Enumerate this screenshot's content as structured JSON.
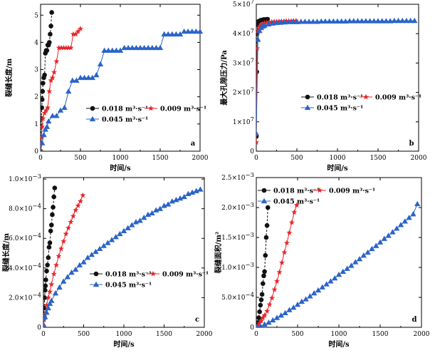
{
  "legend": {
    "s018": "0.018 m³·s⁻¹",
    "s009": "0.009 m³·s⁻¹",
    "s045": "0.045 m³·s⁻¹"
  },
  "colors": {
    "s018": "#111111",
    "s009": "#e8262a",
    "s045": "#2b64c8"
  },
  "chart_data": [
    {
      "panel": "a",
      "type": "line",
      "xlabel": "时间/s",
      "ylabel": "裂缝长度/m",
      "xlim": [
        0,
        2000
      ],
      "ylim": [
        0,
        5.4
      ],
      "xticks": [
        "0",
        "500",
        "1000",
        "1500",
        "2000"
      ],
      "yticks": [
        "0",
        "1",
        "2",
        "3",
        "4",
        "5"
      ],
      "series": [
        {
          "name": "0.018 m³·s⁻¹",
          "key": "s018",
          "marker": "circle",
          "x": [
            0,
            5,
            10,
            15,
            20,
            25,
            30,
            40,
            50,
            60,
            70,
            80,
            90,
            100,
            110,
            120,
            130,
            140
          ],
          "y": [
            0,
            0.3,
            1.2,
            1.6,
            1.9,
            2.2,
            2.5,
            2.7,
            2.8,
            3.6,
            3.7,
            3.7,
            3.9,
            3.9,
            4.0,
            4.3,
            4.6,
            5.1
          ]
        },
        {
          "name": "0.009 m³·s⁻¹",
          "key": "s009",
          "marker": "star",
          "x": [
            0,
            10,
            20,
            30,
            50,
            70,
            90,
            110,
            130,
            150,
            170,
            200,
            230,
            260,
            290,
            320,
            350,
            380,
            410,
            440,
            470,
            500
          ],
          "y": [
            0,
            0.5,
            0.9,
            1.2,
            1.4,
            1.5,
            1.6,
            2.2,
            2.6,
            2.7,
            2.9,
            3.3,
            3.8,
            3.8,
            3.8,
            3.8,
            3.8,
            3.8,
            4.3,
            4.3,
            4.4,
            4.5
          ]
        },
        {
          "name": "0.045 m³·s⁻¹",
          "key": "s045",
          "marker": "triangle",
          "x": [
            0,
            20,
            40,
            60,
            80,
            100,
            150,
            200,
            250,
            300,
            350,
            400,
            450,
            500,
            550,
            600,
            650,
            700,
            750,
            800,
            850,
            900,
            950,
            1000,
            1050,
            1100,
            1150,
            1200,
            1250,
            1300,
            1350,
            1400,
            1450,
            1500,
            1550,
            1600,
            1650,
            1700,
            1750,
            1800,
            1850,
            1900,
            1950,
            2000
          ],
          "y": [
            0,
            0.3,
            0.6,
            0.8,
            0.9,
            1.1,
            1.3,
            1.3,
            1.5,
            1.6,
            2.2,
            2.6,
            2.6,
            2.7,
            2.7,
            2.7,
            2.7,
            2.8,
            3.2,
            3.7,
            3.7,
            3.7,
            3.7,
            3.7,
            3.8,
            3.8,
            3.8,
            3.8,
            3.8,
            3.8,
            3.8,
            3.8,
            3.8,
            3.8,
            4.3,
            4.3,
            4.3,
            4.3,
            4.3,
            4.4,
            4.4,
            4.4,
            4.4,
            4.4
          ]
        }
      ]
    },
    {
      "panel": "b",
      "type": "line",
      "xlabel": "时间/s",
      "ylabel": "最大孔隙压力/Pa",
      "xlim": [
        0,
        2000
      ],
      "ylim": [
        0,
        50000000
      ],
      "xticks": [
        "0",
        "500",
        "1000",
        "1500",
        "2000"
      ],
      "yticks": [
        {
          "mant": "0",
          "exp": ""
        },
        {
          "mant": "1×10",
          "exp": "7"
        },
        {
          "mant": "2×10",
          "exp": "7"
        },
        {
          "mant": "3×10",
          "exp": "7"
        },
        {
          "mant": "4×10",
          "exp": "7"
        },
        {
          "mant": "5×10",
          "exp": "7"
        }
      ],
      "series": [
        {
          "name": "0.018 m³·s⁻¹",
          "key": "s018",
          "marker": "circle",
          "x": [
            0,
            5,
            10,
            15,
            20,
            30,
            40,
            50,
            60,
            70,
            80,
            90,
            100,
            110,
            120,
            130,
            140
          ],
          "y": [
            5000000,
            27000000,
            40000000,
            43000000,
            44000000,
            44200000,
            44300000,
            44500000,
            44600000,
            44600000,
            44700000,
            44800000,
            44800000,
            44700000,
            44800000,
            44900000,
            44900000
          ]
        },
        {
          "name": "0.009 m³·s⁻¹",
          "key": "s009",
          "marker": "star",
          "x": [
            0,
            10,
            20,
            40,
            60,
            80,
            100,
            130,
            160,
            190,
            220,
            250,
            280,
            310,
            340,
            370,
            400,
            430,
            460,
            490
          ],
          "y": [
            3000000,
            35000000,
            41000000,
            42500000,
            43000000,
            43300000,
            43600000,
            43800000,
            43900000,
            44000000,
            44100000,
            44100000,
            44200000,
            44200000,
            44200000,
            44300000,
            44300000,
            44300000,
            44300000,
            44400000
          ]
        },
        {
          "name": "0.045 m³·s⁻¹",
          "key": "s045",
          "marker": "triangle",
          "x": [
            0,
            20,
            40,
            60,
            80,
            100,
            150,
            200,
            250,
            300,
            350,
            400,
            450,
            500,
            550,
            600,
            650,
            700,
            750,
            800,
            850,
            900,
            950,
            1000,
            1050,
            1100,
            1150,
            1200,
            1250,
            1300,
            1350,
            1400,
            1450,
            1500,
            1550,
            1600,
            1650,
            1700,
            1750,
            1800,
            1850,
            1900,
            1950
          ],
          "y": [
            6000000,
            38000000,
            41000000,
            42000000,
            42500000,
            42800000,
            43200000,
            43500000,
            43700000,
            43800000,
            43900000,
            44000000,
            44000000,
            44000000,
            44100000,
            44100000,
            44100000,
            44100000,
            44100000,
            44200000,
            44200000,
            44200000,
            44200000,
            44200000,
            44200000,
            44200000,
            44300000,
            44300000,
            44300000,
            44300000,
            44300000,
            44300000,
            44300000,
            44300000,
            44300000,
            44300000,
            44300000,
            44400000,
            44400000,
            44400000,
            44400000,
            44400000,
            44400000
          ]
        }
      ]
    },
    {
      "panel": "c",
      "type": "line",
      "xlabel": "时间/s",
      "ylabel": "裂缝长度/m",
      "xlim": [
        0,
        2000
      ],
      "ylim": [
        0,
        0.00101
      ],
      "xticks": [
        "0",
        "500",
        "1000",
        "1500",
        "2000"
      ],
      "yticks": [
        {
          "mant": "0",
          "exp": ""
        },
        {
          "mant": "2.0×10",
          "exp": "−4"
        },
        {
          "mant": "4.0×10",
          "exp": "−4"
        },
        {
          "mant": "6.0×10",
          "exp": "−4"
        },
        {
          "mant": "8.0×10",
          "exp": "−4"
        },
        {
          "mant": "1.0×10",
          "exp": "−3"
        }
      ],
      "series": [
        {
          "name": "0.018 m³·s⁻¹",
          "key": "s018",
          "marker": "circle",
          "x": [
            0,
            5,
            10,
            15,
            20,
            25,
            30,
            40,
            50,
            60,
            70,
            80,
            90,
            100,
            110,
            120,
            130,
            140
          ],
          "y": [
            0,
            6e-05,
            0.00013,
            0.0002,
            0.00025,
            0.00028,
            0.00032,
            0.00038,
            0.00042,
            0.00047,
            0.00054,
            0.00057,
            0.00065,
            0.00069,
            0.00076,
            0.00081,
            0.00088,
            0.00094
          ]
        },
        {
          "name": "0.009 m³·s⁻¹",
          "key": "s009",
          "marker": "star",
          "x": [
            0,
            10,
            20,
            40,
            60,
            80,
            100,
            130,
            160,
            190,
            220,
            250,
            280,
            310,
            340,
            370,
            400,
            430,
            460,
            490
          ],
          "y": [
            0,
            5e-05,
            9e-05,
            0.00015,
            0.0002,
            0.00024,
            0.00029,
            0.00036,
            0.00042,
            0.00048,
            0.00053,
            0.00058,
            0.00063,
            0.00067,
            0.00071,
            0.00075,
            0.00079,
            0.00082,
            0.00085,
            0.00089
          ]
        },
        {
          "name": "0.045 m³·s⁻¹",
          "key": "s045",
          "marker": "triangle",
          "x": [
            0,
            20,
            40,
            60,
            80,
            100,
            150,
            200,
            250,
            300,
            350,
            400,
            450,
            500,
            550,
            600,
            650,
            700,
            750,
            800,
            850,
            900,
            950,
            1000,
            1050,
            1100,
            1150,
            1200,
            1250,
            1300,
            1350,
            1400,
            1450,
            1500,
            1550,
            1600,
            1650,
            1700,
            1750,
            1800,
            1850,
            1900,
            1950
          ],
          "y": [
            2e-05,
            7e-05,
            0.0001,
            0.00013,
            0.00016,
            0.00018,
            0.00023,
            0.00027,
            0.00031,
            0.00034,
            0.00037,
            0.00039,
            0.00042,
            0.00044,
            0.00047,
            0.00049,
            0.00051,
            0.00053,
            0.00055,
            0.00057,
            0.00059,
            0.00061,
            0.00063,
            0.00065,
            0.00067,
            0.00069,
            0.00071,
            0.00072,
            0.00074,
            0.00076,
            0.00077,
            0.00079,
            0.0008,
            0.00082,
            0.00083,
            0.00085,
            0.00086,
            0.00087,
            0.00088,
            0.0009,
            0.00091,
            0.00092,
            0.00093
          ]
        }
      ]
    },
    {
      "panel": "d",
      "type": "line",
      "xlabel": "时间/s",
      "ylabel": "裂缝面积/m²",
      "xlim": [
        0,
        2000
      ],
      "ylim": [
        0,
        0.0025
      ],
      "xticks": [
        "0",
        "500",
        "1000",
        "1500",
        "2000"
      ],
      "yticks": [
        {
          "mant": "0",
          "exp": ""
        },
        {
          "mant": "5.0×10",
          "exp": "−4"
        },
        {
          "mant": "1.0×10",
          "exp": "−3"
        },
        {
          "mant": "1.5×10",
          "exp": "−3"
        },
        {
          "mant": "2.0×10",
          "exp": "−3"
        },
        {
          "mant": "2.5×10",
          "exp": "−3"
        }
      ],
      "series": [
        {
          "name": "0.018 m³·s⁻¹",
          "key": "s018",
          "marker": "circle",
          "x": [
            0,
            10,
            20,
            30,
            40,
            50,
            60,
            70,
            80,
            90,
            100,
            110,
            120,
            130,
            140
          ],
          "y": [
            0,
            3e-05,
            8e-05,
            0.00016,
            0.00026,
            0.00037,
            0.00046,
            0.00055,
            0.00073,
            0.00086,
            0.00093,
            0.0012,
            0.0015,
            0.0017,
            0.002
          ]
        },
        {
          "name": "0.009 m³·s⁻¹",
          "key": "s009",
          "marker": "star",
          "x": [
            0,
            20,
            40,
            60,
            80,
            100,
            130,
            160,
            190,
            220,
            250,
            280,
            310,
            340,
            370,
            400,
            430,
            460,
            490
          ],
          "y": [
            0,
            3e-05,
            7e-05,
            0.00011,
            0.00016,
            0.0002,
            0.00027,
            0.00038,
            0.00049,
            0.00063,
            0.00077,
            0.00092,
            0.00108,
            0.00125,
            0.00141,
            0.00158,
            0.00175,
            0.00192,
            0.00204
          ]
        },
        {
          "name": "0.045 m³·s⁻¹",
          "key": "s045",
          "marker": "triangle",
          "x": [
            0,
            50,
            100,
            150,
            200,
            250,
            300,
            350,
            400,
            450,
            500,
            550,
            600,
            650,
            700,
            750,
            800,
            850,
            900,
            950,
            1000,
            1050,
            1100,
            1150,
            1200,
            1250,
            1300,
            1350,
            1400,
            1450,
            1500,
            1550,
            1600,
            1650,
            1700,
            1750,
            1800,
            1850,
            1900,
            1950
          ],
          "y": [
            0,
            2e-05,
            5e-05,
            8e-05,
            0.00012,
            0.00016,
            0.0002,
            0.00024,
            0.00029,
            0.00033,
            0.00038,
            0.00043,
            0.00047,
            0.00052,
            0.00057,
            0.00062,
            0.00067,
            0.00072,
            0.00077,
            0.00082,
            0.00088,
            0.00093,
            0.00098,
            0.00103,
            0.00109,
            0.00114,
            0.0012,
            0.00125,
            0.00131,
            0.00136,
            0.00142,
            0.00148,
            0.00153,
            0.00159,
            0.00165,
            0.00171,
            0.00177,
            0.00183,
            0.00189,
            0.00206
          ]
        }
      ]
    }
  ]
}
